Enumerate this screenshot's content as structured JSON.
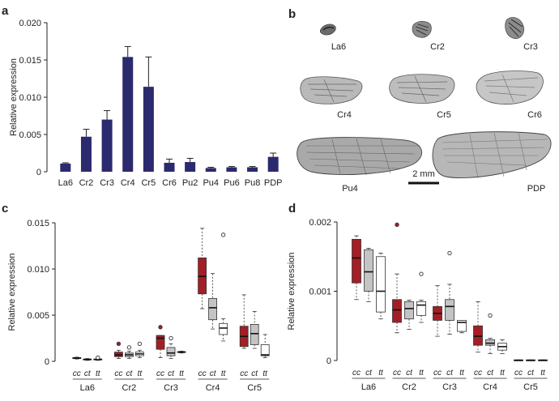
{
  "panel_labels": {
    "a": "a",
    "b": "b",
    "c": "c",
    "d": "d"
  },
  "colors": {
    "bar": "#2b2a6e",
    "cc": "#a31f25",
    "ct": "#c4c4c4",
    "tt": "#ffffff"
  },
  "chart_data": [
    {
      "panel": "a",
      "type": "bar",
      "ylabel": "Relative expression",
      "ylim": [
        0,
        0.02
      ],
      "yticks": [
        "0",
        "0.005",
        "0.010",
        "0.015",
        "0.020"
      ],
      "categories": [
        "La6",
        "Cr2",
        "Cr3",
        "Cr4",
        "Cr5",
        "Cr6",
        "Pu2",
        "Pu4",
        "Pu6",
        "Pu8",
        "PDP"
      ],
      "values": [
        0.0011,
        0.0047,
        0.007,
        0.0154,
        0.0114,
        0.0012,
        0.0013,
        0.0005,
        0.0006,
        0.0006,
        0.002
      ],
      "errors": [
        0.0001,
        0.001,
        0.0012,
        0.0014,
        0.004,
        0.0005,
        0.0005,
        0.0001,
        0.0001,
        0.0001,
        0.0005
      ]
    },
    {
      "panel": "c",
      "type": "box",
      "ylabel": "Relative expression",
      "ylim": [
        0,
        0.015
      ],
      "yticks": [
        "0",
        "0.005",
        "0.010",
        "0.015"
      ],
      "genotypes": [
        "cc",
        "ct",
        "tt"
      ],
      "groups": [
        {
          "name": "La6",
          "boxes": [
            {
              "g": "cc",
              "min": 0.00025,
              "q1": 0.0003,
              "med": 0.00035,
              "q3": 0.0004,
              "max": 0.00045,
              "out": []
            },
            {
              "g": "ct",
              "min": 0.0001,
              "q1": 0.00015,
              "med": 0.0002,
              "q3": 0.00025,
              "max": 0.0003,
              "out": []
            },
            {
              "g": "tt",
              "min": 0.0001,
              "q1": 0.00015,
              "med": 0.0002,
              "q3": 0.00025,
              "max": 0.0003,
              "out": [
                0.0004
              ]
            }
          ]
        },
        {
          "name": "Cr2",
          "boxes": [
            {
              "g": "cc",
              "min": 0.0003,
              "q1": 0.0005,
              "med": 0.0007,
              "q3": 0.001,
              "max": 0.0012,
              "out": [
                0.0019
              ]
            },
            {
              "g": "ct",
              "min": 0.0003,
              "q1": 0.0005,
              "med": 0.0007,
              "q3": 0.0009,
              "max": 0.0011,
              "out": [
                0.0015
              ]
            },
            {
              "g": "tt",
              "min": 0.0004,
              "q1": 0.0006,
              "med": 0.0008,
              "q3": 0.001,
              "max": 0.0012,
              "out": [
                0.0019
              ]
            }
          ]
        },
        {
          "name": "Cr3",
          "boxes": [
            {
              "g": "cc",
              "min": 0.0004,
              "q1": 0.0013,
              "med": 0.0025,
              "q3": 0.0028,
              "max": 0.0028,
              "out": [
                0.0037
              ]
            },
            {
              "g": "ct",
              "min": 0.0003,
              "q1": 0.0006,
              "med": 0.0009,
              "q3": 0.0015,
              "max": 0.0019,
              "out": [
                0.0025
              ]
            },
            {
              "g": "tt",
              "min": 0.0009,
              "q1": 0.00095,
              "med": 0.001,
              "q3": 0.00105,
              "max": 0.0011,
              "out": []
            }
          ]
        },
        {
          "name": "Cr4",
          "boxes": [
            {
              "g": "cc",
              "min": 0.0057,
              "q1": 0.0073,
              "med": 0.0092,
              "q3": 0.0112,
              "max": 0.0144,
              "out": []
            },
            {
              "g": "ct",
              "min": 0.0035,
              "q1": 0.0045,
              "med": 0.0058,
              "q3": 0.0068,
              "max": 0.0095,
              "out": []
            },
            {
              "g": "tt",
              "min": 0.0022,
              "q1": 0.0029,
              "med": 0.0036,
              "q3": 0.0041,
              "max": 0.0046,
              "out": [
                0.0137
              ]
            }
          ]
        },
        {
          "name": "Cr5",
          "boxes": [
            {
              "g": "cc",
              "min": 0.0014,
              "q1": 0.0016,
              "med": 0.0027,
              "q3": 0.0038,
              "max": 0.0072,
              "out": []
            },
            {
              "g": "ct",
              "min": 0.0014,
              "q1": 0.0018,
              "med": 0.003,
              "q3": 0.004,
              "max": 0.0054,
              "out": []
            },
            {
              "g": "tt",
              "min": 0.0004,
              "q1": 0.0006,
              "med": 0.0007,
              "q3": 0.0018,
              "max": 0.0029,
              "out": []
            }
          ]
        }
      ]
    },
    {
      "panel": "d",
      "type": "box",
      "ylabel": "Relative expression",
      "ylim": [
        0,
        0.002
      ],
      "yticks": [
        "0",
        "0.001",
        "0.002"
      ],
      "genotypes": [
        "cc",
        "ct",
        "tt"
      ],
      "groups": [
        {
          "name": "La6",
          "boxes": [
            {
              "g": "cc",
              "min": 0.00088,
              "q1": 0.00112,
              "med": 0.00148,
              "q3": 0.00175,
              "max": 0.0018,
              "out": []
            },
            {
              "g": "ct",
              "min": 0.00085,
              "q1": 0.001,
              "med": 0.00128,
              "q3": 0.0016,
              "max": 0.00162,
              "out": []
            },
            {
              "g": "tt",
              "min": 0.0006,
              "q1": 0.0007,
              "med": 0.001,
              "q3": 0.0015,
              "max": 0.00155,
              "out": []
            }
          ]
        },
        {
          "name": "Cr2",
          "boxes": [
            {
              "g": "cc",
              "min": 0.0004,
              "q1": 0.00055,
              "med": 0.00073,
              "q3": 0.00088,
              "max": 0.00125,
              "out": [
                0.00196
              ]
            },
            {
              "g": "ct",
              "min": 0.00045,
              "q1": 0.0006,
              "med": 0.00075,
              "q3": 0.00085,
              "max": 0.00087,
              "out": []
            },
            {
              "g": "tt",
              "min": 0.00055,
              "q1": 0.00065,
              "med": 0.0008,
              "q3": 0.00085,
              "max": 0.00087,
              "out": [
                0.00125
              ]
            }
          ]
        },
        {
          "name": "Cr3",
          "boxes": [
            {
              "g": "cc",
              "min": 0.00035,
              "q1": 0.00058,
              "med": 0.00068,
              "q3": 0.00078,
              "max": 0.00108,
              "out": []
            },
            {
              "g": "ct",
              "min": 0.00038,
              "q1": 0.00058,
              "med": 0.00078,
              "q3": 0.00088,
              "max": 0.0011,
              "out": [
                0.00155
              ]
            },
            {
              "g": "tt",
              "min": 0.0004,
              "q1": 0.00042,
              "med": 0.00055,
              "q3": 0.00058,
              "max": 0.00058,
              "out": []
            }
          ]
        },
        {
          "name": "Cr4",
          "boxes": [
            {
              "g": "cc",
              "min": 0.00012,
              "q1": 0.00022,
              "med": 0.00035,
              "q3": 0.0005,
              "max": 0.00085,
              "out": []
            },
            {
              "g": "ct",
              "min": 0.0001,
              "q1": 0.00022,
              "med": 0.00025,
              "q3": 0.0003,
              "max": 0.00032,
              "out": [
                0.00065
              ]
            },
            {
              "g": "tt",
              "min": 0.0001,
              "q1": 0.00015,
              "med": 0.0002,
              "q3": 0.00025,
              "max": 0.0003,
              "out": []
            }
          ]
        },
        {
          "name": "Cr5",
          "boxes": [
            {
              "g": "cc",
              "min": 0,
              "q1": 0,
              "med": 0,
              "q3": 1e-05,
              "max": 1e-05,
              "out": []
            },
            {
              "g": "ct",
              "min": 0,
              "q1": 0,
              "med": 0,
              "q3": 1e-05,
              "max": 1e-05,
              "out": []
            },
            {
              "g": "tt",
              "min": 0,
              "q1": 0,
              "med": 0,
              "q3": 1e-05,
              "max": 1e-05,
              "out": []
            }
          ]
        }
      ]
    }
  ],
  "panel_b": {
    "wing_labels": [
      "La6",
      "Cr2",
      "Cr3",
      "Cr4",
      "Cr5",
      "Cr6",
      "Pu4",
      "PDP"
    ],
    "scale_bar_label": "2 mm"
  }
}
